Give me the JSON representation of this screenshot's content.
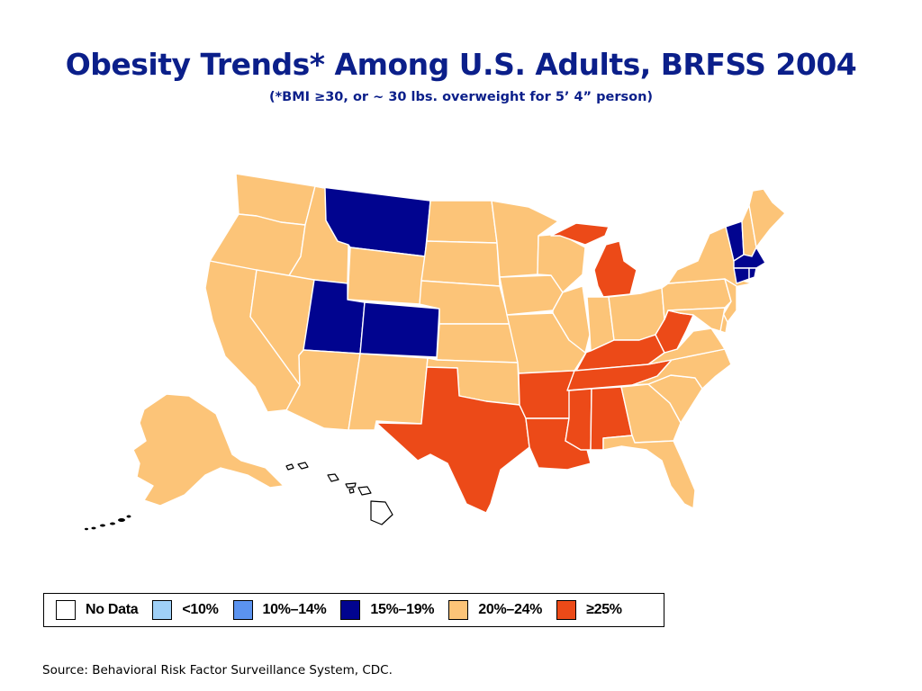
{
  "title": "Obesity Trends* Among U.S. Adults, BRFSS 2004",
  "subtitle": "(*BMI ≥30, or ~ 30 lbs. overweight for 5’ 4” person)",
  "colors": {
    "no_data": "#ffffff",
    "lt10": "#9fd0f7",
    "10_14": "#5b93ef",
    "15_19": "#01048f",
    "20_24": "#fcc478",
    "ge25": "#ec4a18"
  },
  "legend": [
    {
      "key": "no_data",
      "label": "No Data"
    },
    {
      "key": "lt10",
      "label": "<10%"
    },
    {
      "key": "10_14",
      "label": "10%–14%"
    },
    {
      "key": "15_19",
      "label": "15%–19%"
    },
    {
      "key": "20_24",
      "label": "20%–24%"
    },
    {
      "key": "ge25",
      "label": "≥25%"
    }
  ],
  "states": {
    "WA": "20_24",
    "OR": "20_24",
    "CA": "20_24",
    "ID": "20_24",
    "NV": "20_24",
    "MT": "15_19",
    "WY": "20_24",
    "UT": "15_19",
    "CO": "15_19",
    "AZ": "20_24",
    "NM": "20_24",
    "ND": "20_24",
    "SD": "20_24",
    "NE": "20_24",
    "KS": "20_24",
    "OK": "20_24",
    "TX": "ge25",
    "MN": "20_24",
    "IA": "20_24",
    "MO": "20_24",
    "AR": "ge25",
    "LA": "ge25",
    "WI": "20_24",
    "IL": "20_24",
    "MI": "ge25",
    "IN": "20_24",
    "OH": "20_24",
    "KY": "ge25",
    "TN": "ge25",
    "MS": "ge25",
    "AL": "ge25",
    "GA": "20_24",
    "FL": "20_24",
    "SC": "20_24",
    "NC": "20_24",
    "VA": "20_24",
    "WV": "ge25",
    "PA": "20_24",
    "NY": "20_24",
    "VT": "15_19",
    "NH": "20_24",
    "ME": "20_24",
    "MA": "15_19",
    "CT": "15_19",
    "RI": "15_19",
    "NJ": "20_24",
    "DE": "20_24",
    "MD": "20_24",
    "AK": "20_24",
    "HI": "no_data"
  },
  "source": "Source: Behavioral Risk Factor Surveillance System, CDC."
}
